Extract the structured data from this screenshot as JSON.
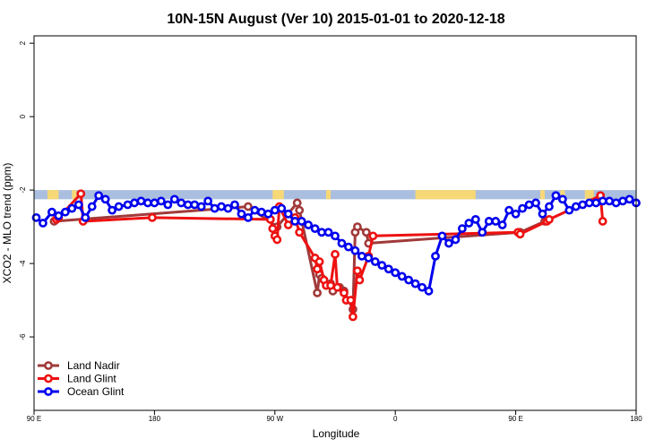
{
  "chart_data": {
    "type": "line",
    "title": "10N-15N August (Ver 10)   2015-01-01 to 2020-12-18",
    "xlabel": "Longitude",
    "ylabel": "XCO2 - MLO trend (ppm)",
    "xlim": [
      -90,
      180
    ],
    "ylim": [
      -8,
      2.2
    ],
    "xtick_labels": [
      {
        "x": -90,
        "label": "90 E"
      },
      {
        "x": -36,
        "label": "180"
      },
      {
        "x": 18,
        "label": "90 W"
      },
      {
        "x": 72,
        "label": "0"
      },
      {
        "x": 126,
        "label": "90 E"
      },
      {
        "x": 180,
        "label": "180"
      }
    ],
    "yticks": [
      -6,
      -4,
      -2,
      0,
      2
    ],
    "legend_position": "bottom-left",
    "land_band": {
      "y_bottom": -2.25,
      "y_top": -2.0,
      "ocean_color": "#aabedf",
      "land_color": "#f7d877"
    },
    "land_segments": [
      [
        -84,
        -79
      ],
      [
        -73,
        -71
      ],
      [
        17,
        22
      ],
      [
        41,
        43
      ],
      [
        81,
        108
      ],
      [
        137,
        139
      ],
      [
        146,
        148
      ],
      [
        157,
        161
      ]
    ],
    "series": [
      {
        "name": "Land Nadir",
        "color": "#a13a3a",
        "x": [
          -81,
          6,
          19,
          28,
          29,
          37,
          38,
          39,
          43,
          44,
          47,
          49,
          53,
          54,
          55,
          59,
          60,
          128,
          139
        ],
        "y": [
          -2.85,
          -2.45,
          -3.0,
          -2.35,
          -2.55,
          -4.8,
          -4.3,
          -4.4,
          -4.55,
          -4.75,
          -4.65,
          -4.75,
          -5.25,
          -3.15,
          -3.0,
          -3.15,
          -3.45,
          -3.15,
          -2.85
        ]
      },
      {
        "name": "Land Glint",
        "color": "#ee1111",
        "x": [
          -80,
          -79,
          -69,
          -68,
          -37,
          16,
          17,
          18,
          19,
          20,
          24,
          27,
          29,
          36,
          37,
          38,
          40,
          41,
          43,
          45,
          46,
          49,
          50,
          52,
          53,
          55,
          56,
          60,
          62,
          127,
          128,
          140,
          141,
          164,
          165
        ],
        "y": [
          -2.8,
          -2.75,
          -2.1,
          -2.85,
          -2.75,
          -2.8,
          -3.05,
          -3.25,
          -3.35,
          -2.45,
          -2.95,
          -2.75,
          -3.15,
          -3.85,
          -4.15,
          -3.95,
          -4.45,
          -4.6,
          -4.6,
          -3.75,
          -4.65,
          -4.8,
          -5.0,
          -5.0,
          -5.45,
          -4.2,
          -4.45,
          -3.8,
          -3.25,
          -3.15,
          -3.2,
          -2.85,
          -2.8,
          -2.15,
          -2.85
        ]
      },
      {
        "name": "Ocean Glint",
        "color": "#0000ee",
        "x": [
          -89,
          -86,
          -82,
          -79,
          -76,
          -73,
          -70,
          -67,
          -64,
          -61,
          -58,
          -55,
          -52,
          -48,
          -45,
          -42,
          -39,
          -36,
          -33,
          -30,
          -27,
          -24,
          -21,
          -18,
          -15,
          -12,
          -9,
          -6,
          -3,
          0,
          3,
          6,
          9,
          12,
          15,
          18,
          21,
          24,
          27,
          30,
          33,
          36,
          39,
          42,
          45,
          48,
          51,
          54,
          57,
          60,
          63,
          66,
          69,
          72,
          75,
          78,
          81,
          84,
          87,
          90,
          93,
          96,
          99,
          102,
          105,
          108,
          111,
          114,
          117,
          120,
          123,
          126,
          129,
          132,
          135,
          138,
          141,
          144,
          147,
          150,
          153,
          156,
          159,
          162,
          165,
          168,
          171,
          174,
          177,
          180
        ],
        "y": [
          -2.75,
          -2.9,
          -2.6,
          -2.7,
          -2.6,
          -2.5,
          -2.4,
          -2.75,
          -2.45,
          -2.15,
          -2.25,
          -2.55,
          -2.45,
          -2.4,
          -2.35,
          -2.3,
          -2.35,
          -2.35,
          -2.3,
          -2.4,
          -2.25,
          -2.35,
          -2.4,
          -2.4,
          -2.45,
          -2.3,
          -2.5,
          -2.45,
          -2.5,
          -2.4,
          -2.65,
          -2.75,
          -2.55,
          -2.6,
          -2.65,
          -2.55,
          -2.5,
          -2.65,
          -2.85,
          -2.85,
          -2.95,
          -3.05,
          -3.15,
          -3.15,
          -3.25,
          -3.45,
          -3.55,
          -3.65,
          -3.8,
          -3.85,
          -3.95,
          -4.05,
          -4.15,
          -4.25,
          -4.35,
          -4.45,
          -4.55,
          -4.65,
          -4.75,
          -3.8,
          -3.25,
          -3.45,
          -3.35,
          -3.05,
          -2.9,
          -2.8,
          -3.15,
          -2.85,
          -2.85,
          -2.95,
          -2.55,
          -2.65,
          -2.5,
          -2.4,
          -2.35,
          -2.65,
          -2.45,
          -2.15,
          -2.25,
          -2.55,
          -2.45,
          -2.4,
          -2.35,
          -2.35,
          -2.3,
          -2.3,
          -2.35,
          -2.3,
          -2.25,
          -2.35
        ]
      }
    ]
  }
}
